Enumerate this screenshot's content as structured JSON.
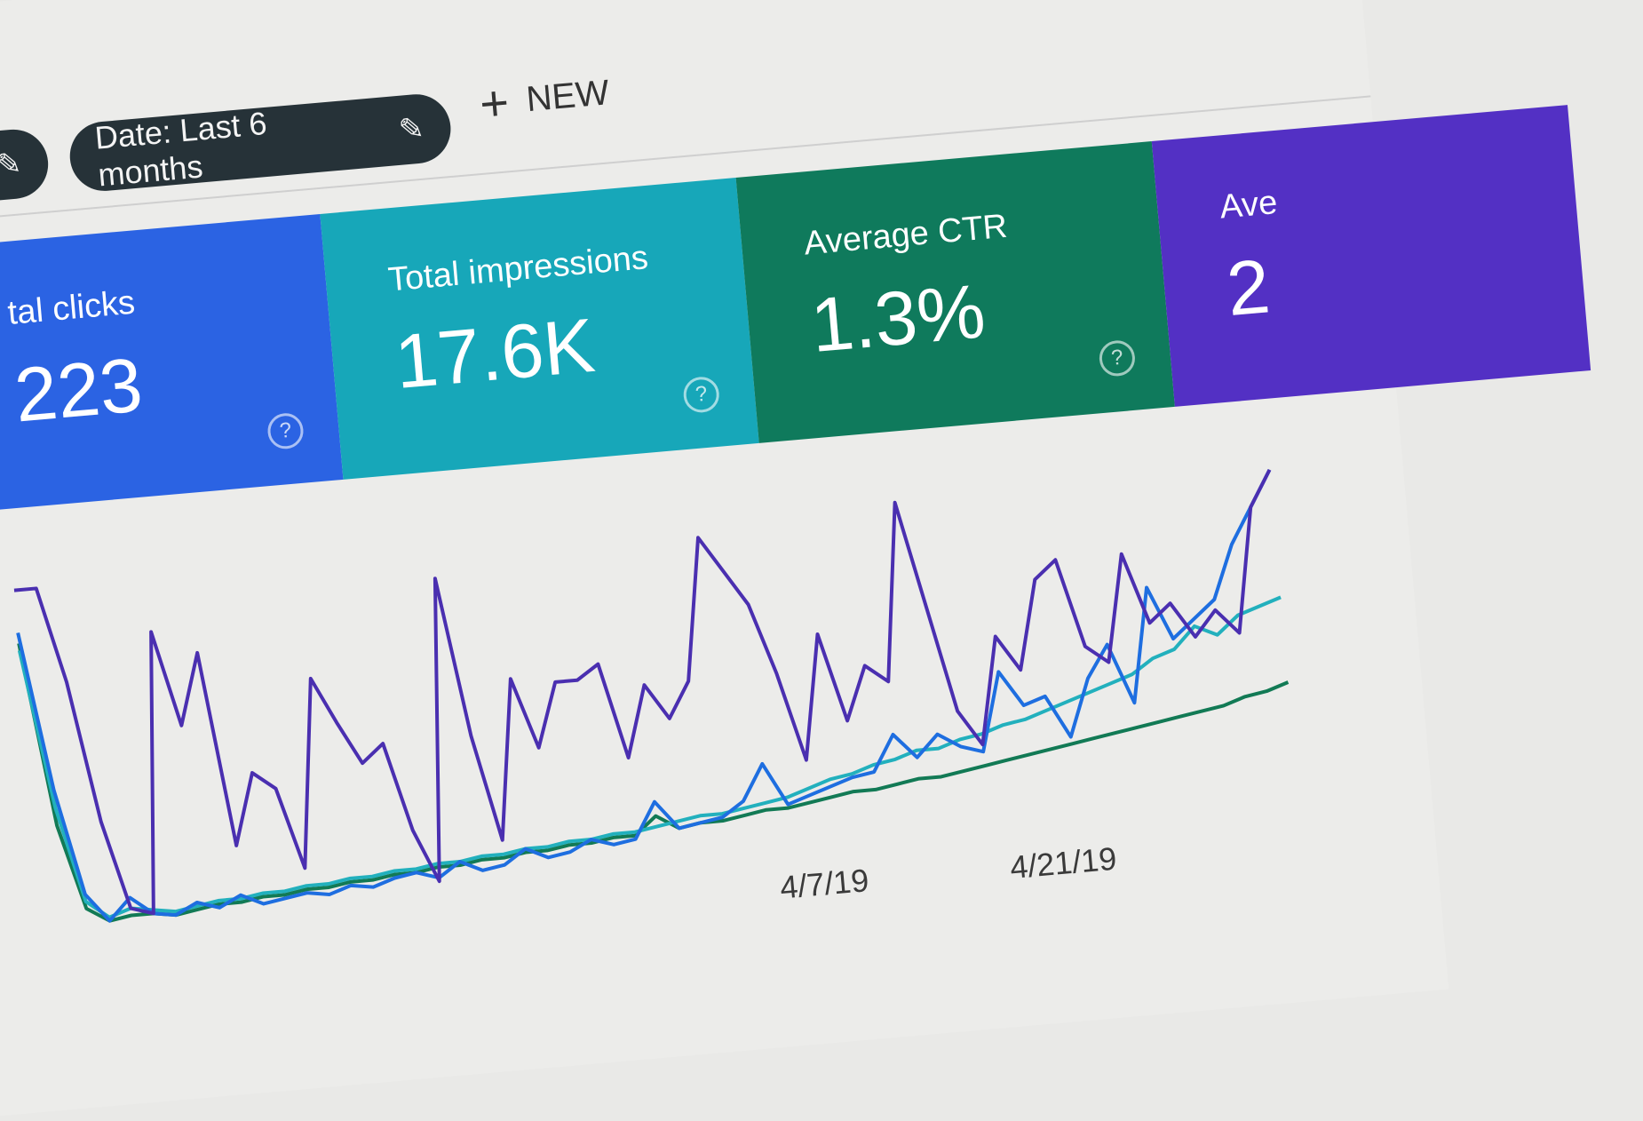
{
  "filters": {
    "chip1_label": "",
    "date_chip_label": "Date: Last 6 months",
    "new_button": "NEW",
    "edit_icon": "pencil-icon",
    "add_icon": "plus-icon"
  },
  "metrics": [
    {
      "label": "tal clicks",
      "value": "223",
      "color": "#2b63e3"
    },
    {
      "label": "Total impressions",
      "value": "17.6K",
      "color": "#17a7b9"
    },
    {
      "label": "Average CTR",
      "value": "1.3%",
      "color": "#0f7a5c"
    },
    {
      "label": "Ave",
      "value": "2",
      "color": "#5330c4"
    }
  ],
  "help_icon": "question-circle-icon",
  "chart_data": {
    "type": "line",
    "x_tick_labels": [
      "4/7/19",
      "4/21/19"
    ],
    "series": [
      {
        "color": "#4a2fb0",
        "values": [
          97,
          97,
          70,
          30,
          5,
          3,
          82,
          55,
          75,
          20,
          40,
          35,
          12,
          65,
          52,
          40,
          45,
          20,
          5,
          90,
          45,
          15,
          60,
          40,
          58,
          58,
          62,
          35,
          55,
          45,
          55,
          95,
          85,
          75,
          55,
          30,
          65,
          40,
          55,
          50,
          100,
          70,
          40,
          30,
          60,
          50,
          75,
          80,
          55,
          50,
          80,
          60,
          65,
          55,
          62,
          55,
          90,
          100
        ]
      },
      {
        "color": "#1e6ee0",
        "values": [
          85,
          40,
          10,
          2,
          8,
          3,
          2,
          5,
          3,
          6,
          3,
          4,
          5,
          4,
          6,
          5,
          7,
          8,
          6,
          10,
          7,
          8,
          12,
          9,
          10,
          13,
          11,
          12,
          22,
          14,
          15,
          16,
          20,
          30,
          18,
          20,
          22,
          24,
          25,
          35,
          28,
          34,
          30,
          28,
          50,
          40,
          42,
          30,
          46,
          55,
          38,
          70,
          55,
          60,
          65,
          80,
          90,
          100
        ]
      },
      {
        "color": "#22b0bd",
        "values": [
          80,
          35,
          8,
          3,
          5,
          4,
          3,
          4,
          5,
          5,
          6,
          6,
          7,
          7,
          8,
          8,
          9,
          9,
          10,
          10,
          11,
          11,
          12,
          12,
          13,
          13,
          14,
          14,
          15,
          16,
          17,
          17,
          18,
          19,
          20,
          22,
          24,
          25,
          27,
          28,
          30,
          30,
          32,
          33,
          35,
          36,
          38,
          40,
          42,
          44,
          46,
          50,
          52,
          58,
          55,
          60,
          62,
          64
        ]
      },
      {
        "color": "#127a55",
        "values": [
          82,
          30,
          6,
          2,
          3,
          3,
          2,
          3,
          4,
          4,
          5,
          5,
          6,
          6,
          7,
          7,
          8,
          8,
          9,
          9,
          10,
          10,
          11,
          11,
          12,
          12,
          13,
          13,
          18,
          14,
          15,
          15,
          16,
          17,
          17,
          18,
          19,
          20,
          20,
          21,
          22,
          22,
          23,
          24,
          25,
          26,
          27,
          28,
          29,
          30,
          31,
          32,
          33,
          34,
          35,
          37,
          38,
          40
        ]
      }
    ]
  }
}
